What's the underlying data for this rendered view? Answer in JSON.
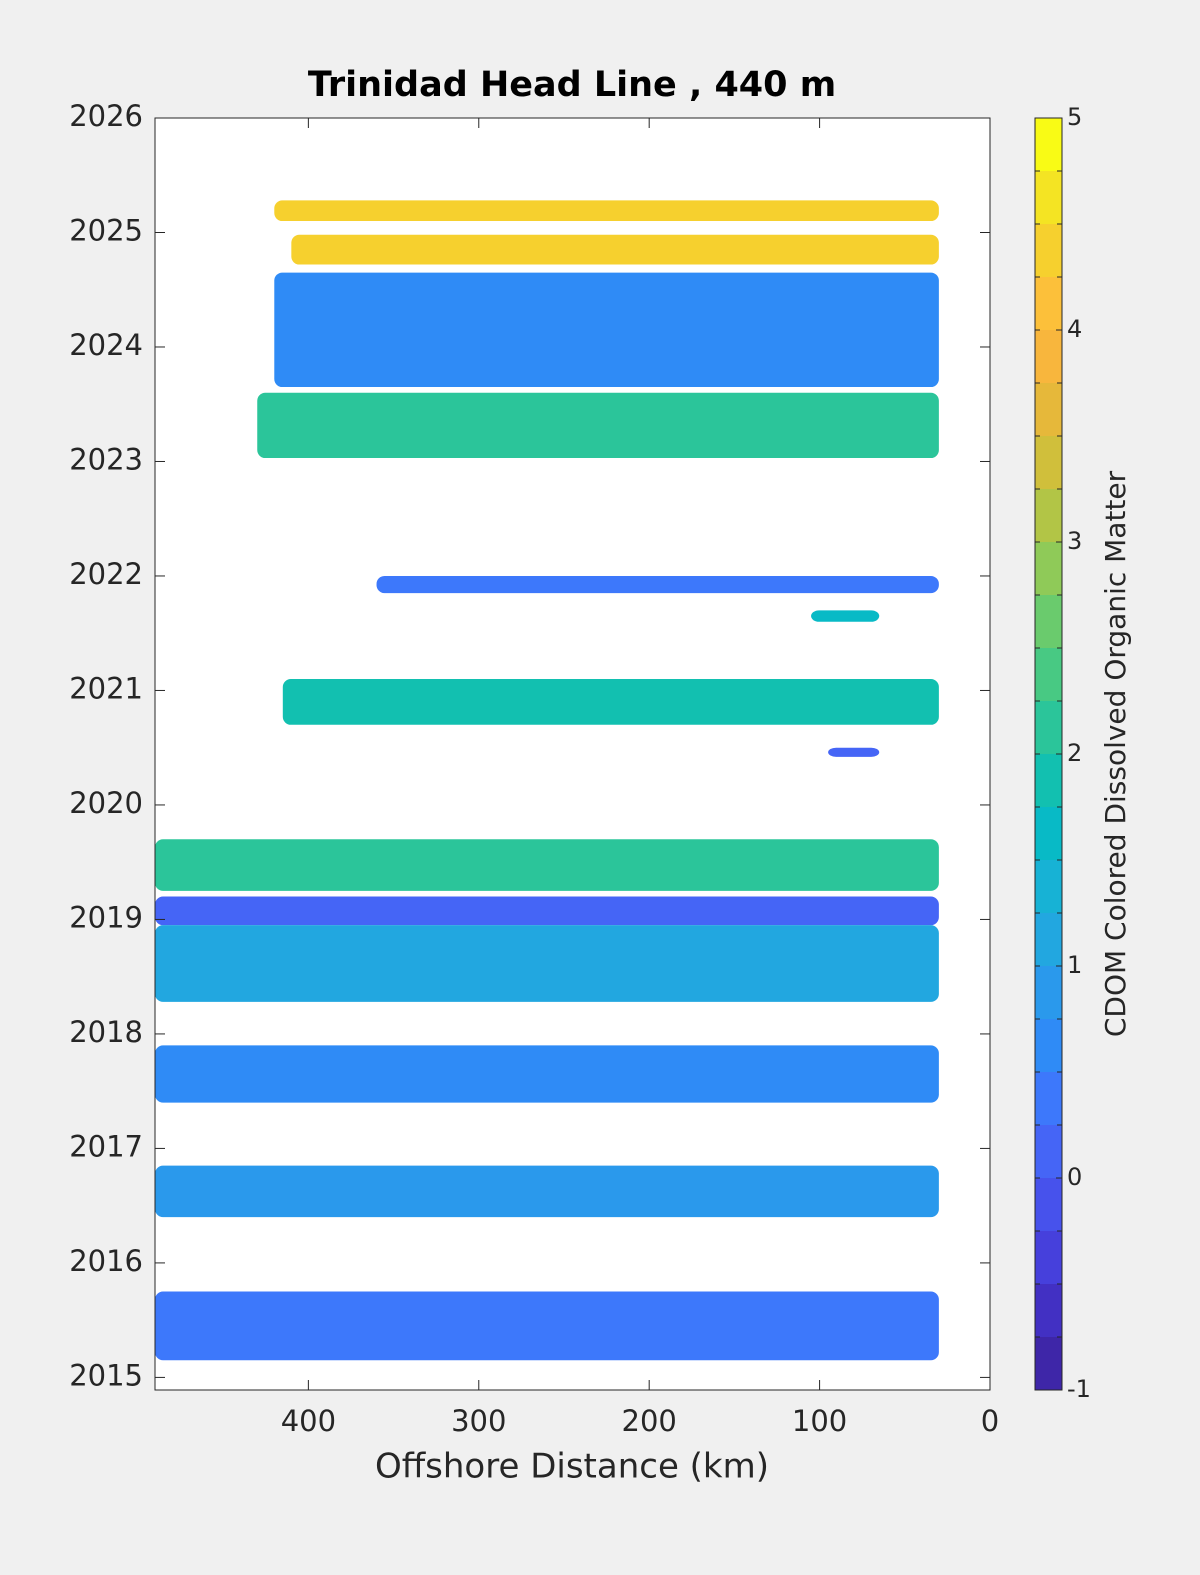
{
  "chart_data": {
    "type": "contour",
    "title": "Trinidad Head Line , 440 m",
    "xlabel": "Offshore Distance (km)",
    "xlim": [
      490,
      0
    ],
    "xticks": [
      400,
      300,
      200,
      100,
      0
    ],
    "ylim": [
      2014.89,
      2026
    ],
    "yticks": [
      2015,
      2016,
      2017,
      2018,
      2019,
      2020,
      2021,
      2022,
      2023,
      2024,
      2025,
      2026
    ],
    "regions": [
      {
        "x": [
          420,
          30
        ],
        "y": [
          2025.1,
          2025.28
        ],
        "value": 4.4
      },
      {
        "x": [
          410,
          30
        ],
        "y": [
          2024.72,
          2024.98
        ],
        "value": 4.4
      },
      {
        "x": [
          420,
          30
        ],
        "y": [
          2023.65,
          2024.65
        ],
        "value": 0.7
      },
      {
        "x": [
          430,
          30
        ],
        "y": [
          2023.03,
          2023.6
        ],
        "value": 2.0
      },
      {
        "x": [
          360,
          30
        ],
        "y": [
          2021.85,
          2022.0
        ],
        "value": 0.3
      },
      {
        "x": [
          105,
          65
        ],
        "y": [
          2021.6,
          2021.7
        ],
        "value": 1.7
      },
      {
        "x": [
          415,
          30
        ],
        "y": [
          2020.7,
          2021.1
        ],
        "value": 1.9
      },
      {
        "x": [
          95,
          65
        ],
        "y": [
          2020.42,
          2020.5
        ],
        "value": 0.1
      },
      {
        "x": [
          490,
          30
        ],
        "y": [
          2019.25,
          2019.7
        ],
        "value": 2.0
      },
      {
        "x": [
          490,
          30
        ],
        "y": [
          2018.95,
          2019.2
        ],
        "value": 0.0
      },
      {
        "x": [
          490,
          30
        ],
        "y": [
          2018.28,
          2018.95
        ],
        "value": 1.0
      },
      {
        "x": [
          490,
          30
        ],
        "y": [
          2017.4,
          2017.9
        ],
        "value": 0.6
      },
      {
        "x": [
          490,
          30
        ],
        "y": [
          2016.4,
          2016.85
        ],
        "value": 0.9
      },
      {
        "x": [
          490,
          30
        ],
        "y": [
          2015.15,
          2015.75
        ],
        "value": 0.4
      }
    ],
    "colorbar": {
      "label": "CDOM Colored Dissolved Organic Matter",
      "clim": [
        -1,
        5
      ],
      "ticks": [
        -1,
        0,
        1,
        2,
        3,
        4,
        5
      ],
      "colormap": [
        "#3e26a8",
        "#4230c3",
        "#4640dc",
        "#4752ec",
        "#4565f6",
        "#3d78fb",
        "#2f8bf6",
        "#2a99ec",
        "#22a7e0",
        "#17b2d5",
        "#08bac6",
        "#12c0b0",
        "#2bc59a",
        "#48c983",
        "#6acb6d",
        "#8fca58",
        "#b2c546",
        "#d0bf3b",
        "#e6b83a",
        "#f8b63d",
        "#fcc03a",
        "#f6d02e",
        "#f4e423",
        "#f9fb15"
      ]
    }
  }
}
